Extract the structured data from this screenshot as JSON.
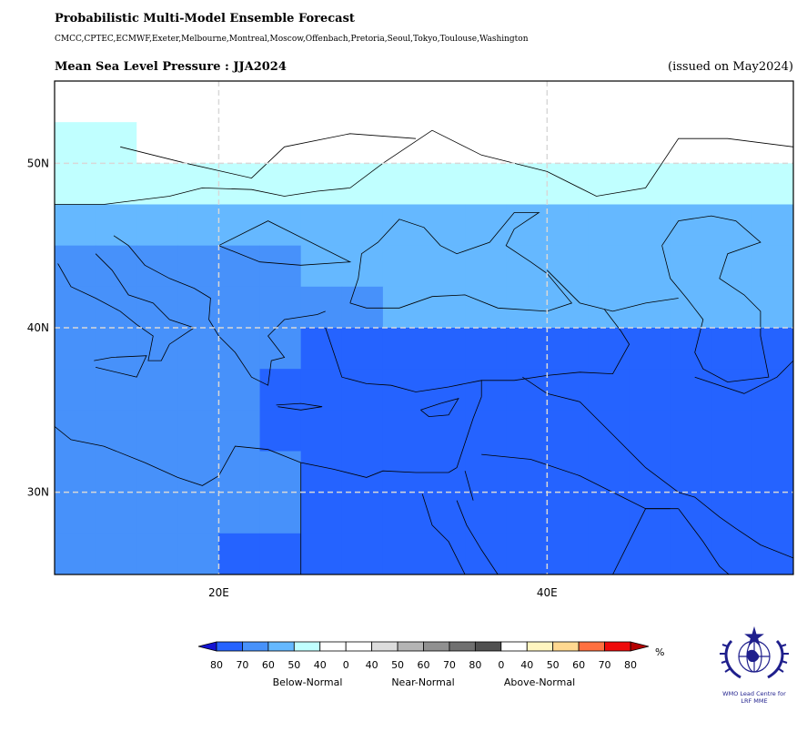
{
  "header": {
    "title": "Probabilistic Multi-Model Ensemble Forecast",
    "models": "CMCC,CPTEC,ECMWF,Exeter,Melbourne,Montreal,Moscow,Offenbach,Pretoria,Seoul,Tokyo,Toulouse,Washington",
    "variable_season": "Mean Sea Level Pressure : JJA2024",
    "issued": "(issued on May2024)"
  },
  "map": {
    "lat_ticks": [
      {
        "value": 50,
        "label": "50N"
      },
      {
        "value": 40,
        "label": "40N"
      },
      {
        "value": 30,
        "label": "30N"
      }
    ],
    "lon_ticks": [
      {
        "value": 20,
        "label": "20E"
      },
      {
        "value": 40,
        "label": "40E"
      }
    ],
    "extent": {
      "lon_min": 10,
      "lon_max": 55,
      "lat_min": 25,
      "lat_max": 55
    },
    "grid_resolution_deg": 2.5,
    "colors": {
      "below_80": "#2563ff",
      "below_70": "#4791fa",
      "below_60": "#65b8ff",
      "below_50": "#c0ffff",
      "white": "#ffffff"
    },
    "grid": [
      "WWWWWWWWWWWWWWWWWWWWWWWWWWWWWWWWWWWWWWWWWWWWWWWWWWWWWWWWWWWWWWWWWWWWWWWWWWWWWWWWWWWWWWWWWWWWWWWWWWWWWWWWWWWWWWWWWWWWWWWWWWWWWWWWWWWWWWWW"
    ],
    "rows": [
      {
        "lat": 52.5,
        "cells": "WWWWWWWWWWWWWWWWWWWWWWWWWWCCCCCCCCC"
      },
      {
        "lat": 50.0,
        "cells": "CCWWWWWWWWWWWWWWWWWWWCCCCCCCCCCCCCC"
      },
      {
        "lat": 47.5,
        "cells": "CCCCCCCCCCCCCCCCCCCCCCSSSSSSSSCCCCC"
      },
      {
        "lat": 45.0,
        "cells": "SSSSSSSSSSSSSSSSSSSSSSSSSSSSSSSSSSSS"
      },
      {
        "lat": 42.5,
        "cells": "MMMMMMSSSSSSSSSSSSSSSSMMMSSSSSSSSSSS"
      },
      {
        "lat": 40.0,
        "cells": "MMMMMMMMSSSSSSSSSSSSSSSSSSSSSCSSSSSS"
      },
      {
        "lat": 37.5,
        "cells": "MMMMMMDDDDDDDDDDDDSSSSSSSSSSSCCCSSSS"
      },
      {
        "lat": 35.0,
        "cells": "MMMMMDDDDDDDDDDDDDDDDDMMMMMMMCCCCCCC"
      },
      {
        "lat": 32.5,
        "cells": "MMMMMDDDDDDDDDDDDDDDDDDMMMMMMMCCCCCC"
      },
      {
        "lat": 30.0,
        "cells": "MMMMMMDDDDDDDDDDDDDDDDMMMMMMMMMSWWWW"
      },
      {
        "lat": 27.5,
        "cells": "MMMMMMDDDDDDDDDDDDDDDDMMMMMMMMMSCCWW"
      },
      {
        "lat": 25.0,
        "cells": "MMMMDDDDDDDDDDDDDDDDDDSSMMMMMMMMMCC"
      }
    ]
  },
  "legend": {
    "unit": "%",
    "colors": [
      "#2563ff",
      "#4791fa",
      "#65b8ff",
      "#c0ffff",
      "#ffffff",
      "#ffffff",
      "#dcdcdc",
      "#b4b4b4",
      "#909090",
      "#707070",
      "#505050",
      "#ffffff",
      "#fff5c0",
      "#ffd890",
      "#ff7040",
      "#ee0a0a"
    ],
    "arrow_left": "#1414d2",
    "arrow_right": "#b40000",
    "tick_labels": [
      "80",
      "70",
      "60",
      "50",
      "40",
      "0",
      "40",
      "50",
      "60",
      "70",
      "80",
      "0",
      "40",
      "50",
      "60",
      "70",
      "80"
    ],
    "categories": [
      "Below-Normal",
      "Near-Normal",
      "Above-Normal"
    ]
  },
  "logo": {
    "text_line1": "WMO Lead Centre for",
    "text_line2": "LRF MME",
    "color": "#1f1f8c"
  }
}
